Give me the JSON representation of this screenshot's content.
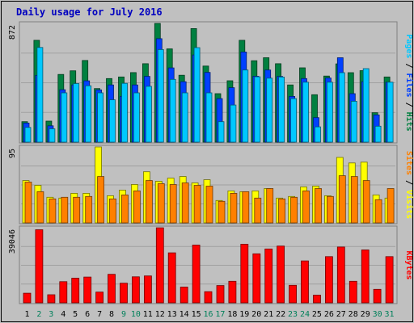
{
  "chart_data": {
    "type": "bar",
    "title": "Daily usage for July 2016",
    "categories": [
      "1",
      "2",
      "3",
      "4",
      "5",
      "6",
      "7",
      "8",
      "9",
      "10",
      "11",
      "12",
      "13",
      "14",
      "15",
      "16",
      "17",
      "18",
      "19",
      "20",
      "21",
      "22",
      "23",
      "24",
      "25",
      "26",
      "27",
      "28",
      "29",
      "30",
      "31"
    ],
    "weekend_days": [
      "2",
      "3",
      "9",
      "10",
      "16",
      "17",
      "23",
      "24",
      "30",
      "31"
    ],
    "panels": [
      {
        "id": "hits",
        "max_label": "872",
        "ymax": 872,
        "right_label": [
          "Pages",
          "Files",
          "Hits"
        ],
        "series": [
          {
            "name": "Hits",
            "color": "#008040",
            "values": [
              150,
              748,
              154,
              497,
              524,
              600,
              393,
              467,
              479,
              511,
              576,
              872,
              685,
              491,
              834,
              559,
              356,
              451,
              748,
              598,
              620,
              576,
              420,
              546,
              348,
              485,
              575,
              510,
              525,
              216,
              479
            ]
          },
          {
            "name": "Files",
            "color": "#0040ff",
            "values": [
              140,
              490,
              120,
              385,
              420,
              450,
              384,
              420,
              336,
              420,
              483,
              760,
              545,
              444,
              640,
              512,
              320,
              400,
              662,
              484,
              530,
              482,
              336,
              467,
              180,
              471,
              620,
              356,
              444,
              200,
              440
            ]
          },
          {
            "name": "Pages",
            "color": "#00c8ff",
            "values": [
              108,
              695,
              98,
              362,
              430,
              414,
              362,
              311,
              432,
              362,
              410,
              680,
              461,
              362,
              694,
              362,
              150,
              272,
              530,
              480,
              470,
              478,
              320,
              440,
              112,
              440,
              510,
              300,
              540,
              117,
              440
            ]
          }
        ]
      },
      {
        "id": "visits",
        "max_label": "95",
        "ymax": 95,
        "right_label": [
          "Sites",
          "Visits"
        ],
        "series": [
          {
            "name": "Visits",
            "color": "#ffff00",
            "values": [
              53,
              47,
              32,
              31,
              37,
              37,
              95,
              34,
              41,
              48,
              64,
              52,
              56,
              58,
              50,
              54,
              28,
              40,
              39,
              40,
              43,
              31,
              33,
              45,
              46,
              34,
              82,
              75,
              76,
              35,
              31
            ]
          },
          {
            "name": "Sites",
            "color": "#ff8000",
            "values": [
              51,
              39,
              30,
              32,
              32,
              33,
              58,
              30,
              35,
              40,
              53,
              49,
              48,
              50,
              47,
              46,
              27,
              37,
              39,
              31,
              43,
              30,
              32,
              40,
              43,
              33,
              59,
              58,
              53,
              29,
              43
            ]
          }
        ]
      },
      {
        "id": "kbytes",
        "max_label": "39046",
        "ymax": 39046,
        "right_label": [
          "KBytes"
        ],
        "series": [
          {
            "name": "KBytes",
            "color": "#ff0000",
            "values": [
              5000,
              38000,
              4200,
              11000,
              12800,
              13400,
              5600,
              14800,
              10200,
              13500,
              14000,
              39000,
              26000,
              8200,
              30000,
              5800,
              9000,
              11200,
              30500,
              25500,
              28000,
              29500,
              9100,
              21800,
              4000,
              24000,
              29000,
              11200,
              27500,
              7000,
              24000
            ]
          }
        ]
      }
    ]
  }
}
